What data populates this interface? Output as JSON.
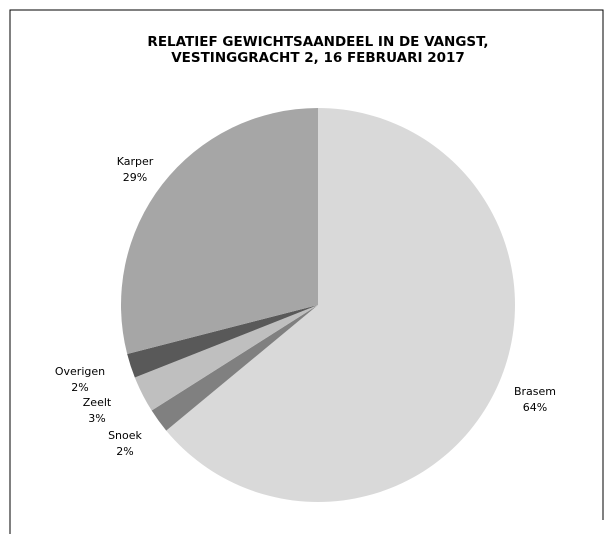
{
  "chart_data": {
    "type": "pie",
    "title": [
      "RELATIEF GEWICHTSAANDEEL IN DE VANGST,",
      "VESTINGGRACHT 2, 16 FEBRUARI 2017"
    ],
    "categories": [
      "Brasem",
      "Snoek",
      "Zeelt",
      "Overigen",
      "Karper"
    ],
    "values": [
      64,
      2,
      3,
      2,
      29
    ],
    "value_labels": [
      "64%",
      "2%",
      "3%",
      "2%",
      "29%"
    ],
    "colors": [
      "#d9d9d9",
      "#808080",
      "#bfbfbf",
      "#595959",
      "#a6a6a6"
    ]
  }
}
